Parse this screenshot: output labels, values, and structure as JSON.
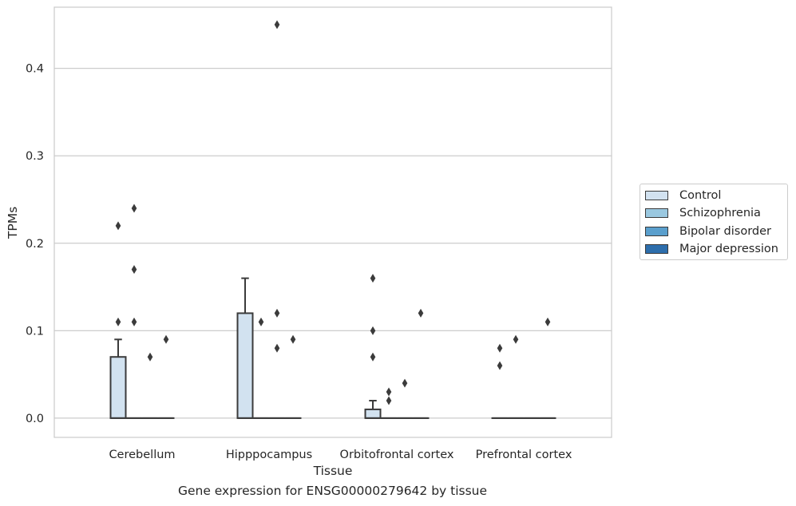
{
  "chart_data": {
    "type": "box",
    "title": "",
    "xlabel": "Tissue",
    "ylabel": "TPMs",
    "caption": "Gene expression for ENSG00000279642 by tissue",
    "ylim": [
      -0.022,
      0.47
    ],
    "yticks": [
      0.0,
      0.1,
      0.2,
      0.3,
      0.4
    ],
    "ytick_labels": [
      "0.0",
      "0.1",
      "0.2",
      "0.3",
      "0.4"
    ],
    "grid": "horizontal",
    "legend_position": "right",
    "categories": [
      "Cerebellum",
      "Hipppocampus",
      "Orbitofrontal cortex",
      "Prefrontal cortex"
    ],
    "series": [
      {
        "name": "Control",
        "color": "#d2e2f0",
        "boxes": [
          {
            "q1": 0.0,
            "median": 0.0,
            "q3": 0.07,
            "whisker_low": 0.0,
            "whisker_high": 0.09,
            "outliers": [
              0.22,
              0.11
            ]
          },
          {
            "q1": 0.0,
            "median": 0.0,
            "q3": 0.12,
            "whisker_low": 0.0,
            "whisker_high": 0.16,
            "outliers": []
          },
          {
            "q1": 0.0,
            "median": 0.0,
            "q3": 0.01,
            "whisker_low": 0.0,
            "whisker_high": 0.02,
            "outliers": [
              0.16,
              0.1,
              0.07
            ]
          },
          {
            "q1": 0.0,
            "median": 0.0,
            "q3": 0.0,
            "whisker_low": 0.0,
            "whisker_high": 0.0,
            "outliers": [
              0.08,
              0.06
            ]
          }
        ]
      },
      {
        "name": "Schizophrenia",
        "color": "#9ac8e0",
        "boxes": [
          {
            "q1": 0.0,
            "median": 0.0,
            "q3": 0.0,
            "whisker_low": 0.0,
            "whisker_high": 0.0,
            "outliers": [
              0.24,
              0.17,
              0.11
            ]
          },
          {
            "q1": 0.0,
            "median": 0.0,
            "q3": 0.0,
            "whisker_low": 0.0,
            "whisker_high": 0.0,
            "outliers": [
              0.11
            ]
          },
          {
            "q1": 0.0,
            "median": 0.0,
            "q3": 0.0,
            "whisker_low": 0.0,
            "whisker_high": 0.0,
            "outliers": [
              0.03,
              0.02
            ]
          },
          {
            "q1": 0.0,
            "median": 0.0,
            "q3": 0.0,
            "whisker_low": 0.0,
            "whisker_high": 0.0,
            "outliers": [
              0.09
            ]
          }
        ]
      },
      {
        "name": "Bipolar disorder",
        "color": "#5a9fcd",
        "boxes": [
          {
            "q1": 0.0,
            "median": 0.0,
            "q3": 0.0,
            "whisker_low": 0.0,
            "whisker_high": 0.0,
            "outliers": [
              0.07
            ]
          },
          {
            "q1": 0.0,
            "median": 0.0,
            "q3": 0.0,
            "whisker_low": 0.0,
            "whisker_high": 0.0,
            "outliers": [
              0.45,
              0.12,
              0.08
            ]
          },
          {
            "q1": 0.0,
            "median": 0.0,
            "q3": 0.0,
            "whisker_low": 0.0,
            "whisker_high": 0.0,
            "outliers": [
              0.04
            ]
          },
          {
            "q1": 0.0,
            "median": 0.0,
            "q3": 0.0,
            "whisker_low": 0.0,
            "whisker_high": 0.0,
            "outliers": []
          }
        ]
      },
      {
        "name": "Major depression",
        "color": "#2d6eac",
        "boxes": [
          {
            "q1": 0.0,
            "median": 0.0,
            "q3": 0.0,
            "whisker_low": 0.0,
            "whisker_high": 0.0,
            "outliers": [
              0.09
            ]
          },
          {
            "q1": 0.0,
            "median": 0.0,
            "q3": 0.0,
            "whisker_low": 0.0,
            "whisker_high": 0.0,
            "outliers": [
              0.09
            ]
          },
          {
            "q1": 0.0,
            "median": 0.0,
            "q3": 0.0,
            "whisker_low": 0.0,
            "whisker_high": 0.0,
            "outliers": [
              0.12
            ]
          },
          {
            "q1": 0.0,
            "median": 0.0,
            "q3": 0.0,
            "whisker_low": 0.0,
            "whisker_high": 0.0,
            "outliers": [
              0.11
            ]
          }
        ]
      }
    ]
  }
}
